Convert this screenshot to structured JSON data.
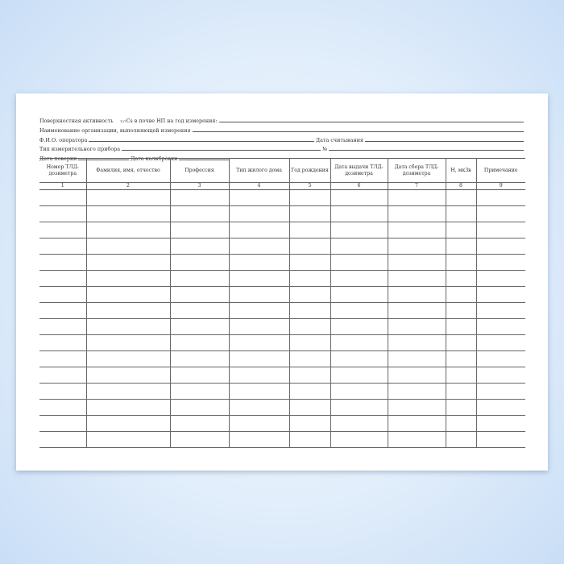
{
  "form": {
    "line1_label": "Поверхностная активность",
    "line1_sup": "137",
    "line1_rest": "Cs в почве НП на год измерения:",
    "line2_label": "Наименование организации, выполняющей измерения",
    "line3_label": "Ф.И.О. оператора",
    "line3_label2": "Дата считывания",
    "line4_label": "Тип измерительного прибора",
    "line4_label2": "№",
    "line5_label": "Дата поверки",
    "line5_label2": "Дата калибровки"
  },
  "table": {
    "headers": [
      "Номер ТЛД-дозиметра",
      "Фамилия, имя, отчество",
      "Профессия",
      "Тип жилого дома",
      "Год рождения",
      "Дата выдачи ТЛД-дозиметра",
      "Дата сбора ТЛД-дозиметра",
      "Н, мкЗв",
      "Примечание"
    ],
    "numbers": [
      "1",
      "2",
      "3",
      "4",
      "5",
      "6",
      "7",
      "8",
      "9"
    ],
    "empty_rows": 16
  }
}
